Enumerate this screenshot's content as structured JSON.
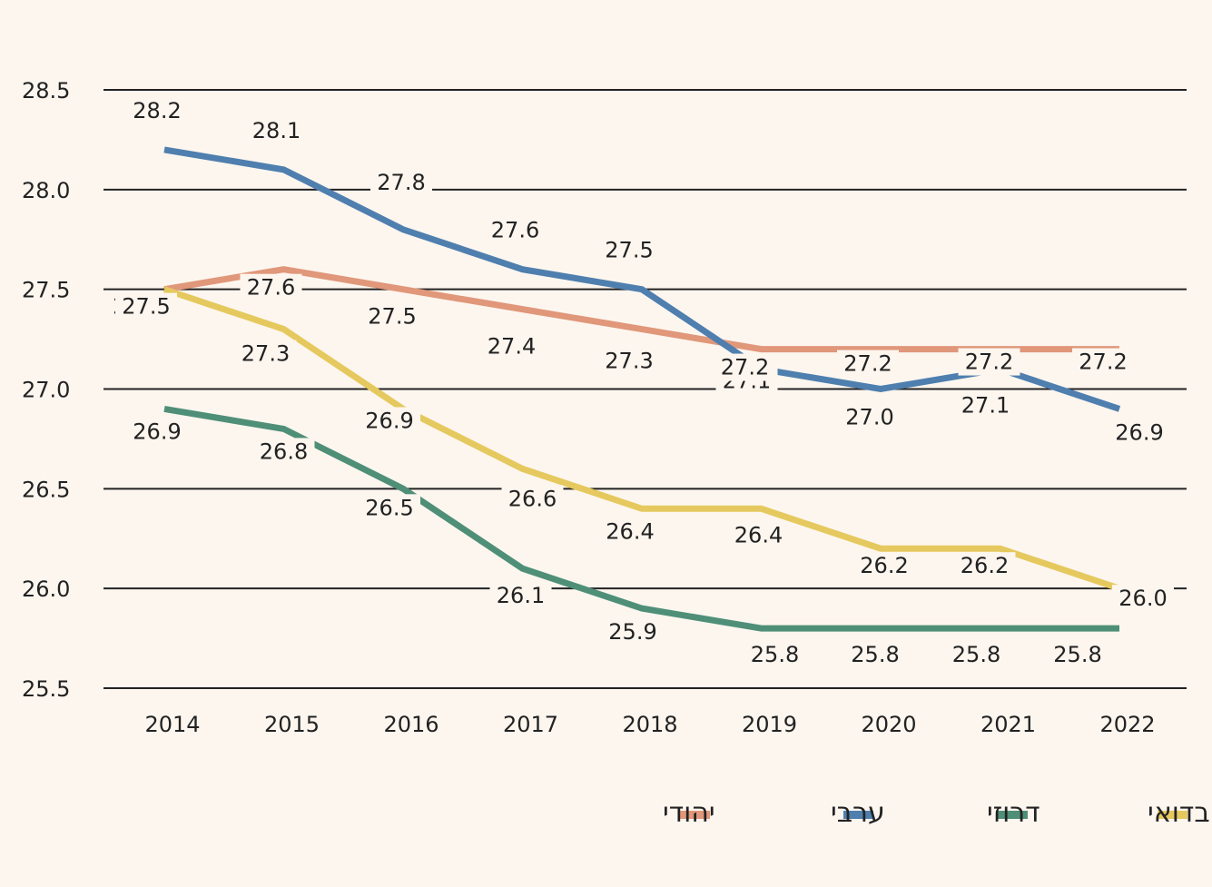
{
  "chart_data": {
    "type": "line",
    "title": "",
    "xlabel": "",
    "ylabel": "",
    "x": [
      "2014",
      "2015",
      "2016",
      "2017",
      "2018",
      "2019",
      "2020",
      "2021",
      "2022"
    ],
    "ylim": [
      25.5,
      28.5
    ],
    "yticks": [
      "25.5",
      "26.0",
      "26.5",
      "27.0",
      "27.5",
      "28.0",
      "28.5"
    ],
    "grid": "horizontal",
    "legend_position": "bottom-right",
    "series": [
      {
        "name": "יהודי",
        "color": "#e0977a",
        "values": [
          27.5,
          27.6,
          27.5,
          27.4,
          27.3,
          27.2,
          27.2,
          27.2,
          27.2
        ],
        "labels": [
          "27.5",
          "27.6",
          "27.5",
          "27.4",
          "27.3",
          "27.2",
          "27.2",
          "27.2",
          "27.2"
        ]
      },
      {
        "name": "ערבי",
        "color": "#4f7fae",
        "values": [
          28.2,
          28.1,
          27.8,
          27.6,
          27.5,
          27.1,
          27.0,
          27.1,
          26.9
        ],
        "labels": [
          "28.2",
          "28.1",
          "27.8",
          "27.6",
          "27.5",
          "27.1",
          "27.0",
          "27.1",
          "26.9"
        ]
      },
      {
        "name": "דרוזי",
        "color": "#4f8f78",
        "values": [
          26.9,
          26.8,
          26.5,
          26.1,
          25.9,
          25.8,
          25.8,
          25.8,
          25.8
        ],
        "labels": [
          "26.9",
          "26.8",
          "26.5",
          "26.1",
          "25.9",
          "25.8",
          "25.8",
          "25.8",
          "25.8"
        ]
      },
      {
        "name": "בדואי",
        "color": "#e5c95e",
        "values": [
          27.5,
          27.3,
          26.9,
          26.6,
          26.4,
          26.4,
          26.2,
          26.2,
          26.0
        ],
        "labels": [
          "27.5",
          "27.3",
          "26.9",
          "26.6",
          "26.4",
          "26.4",
          "26.2",
          "26.2",
          "26.0"
        ]
      }
    ]
  }
}
